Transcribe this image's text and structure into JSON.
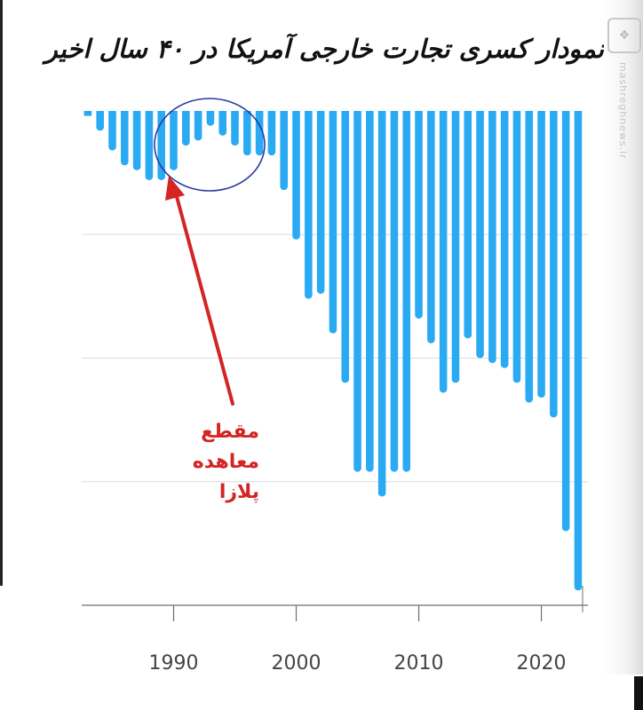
{
  "title": "نمودار کسری تجارت خارجی آمریکا در ۴۰ سال اخیر",
  "annotation": {
    "lines": [
      "مقطع",
      "معاهده",
      "پلازا"
    ]
  },
  "watermark": {
    "icon": "mashregh-logo-icon",
    "text": "mashreghnews.ir"
  },
  "colors": {
    "bar": "#29aaf3",
    "grid": "#d9dde2",
    "axis": "#6f6f6f",
    "annotation": "#d42424",
    "circle": "#2f3aa0"
  },
  "chart_data": {
    "type": "bar",
    "title": "نمودار کسری تجارت خارجی آمریکا در ۴۰ سال اخیر",
    "xlabel": "",
    "ylabel": "",
    "x_ticks": [
      "1990",
      "2000",
      "2010",
      "2020"
    ],
    "x_tick_values": [
      1990,
      2000,
      2010,
      2020
    ],
    "x_range": [
      1982.5,
      2023.8
    ],
    "ylim": [
      -1.0,
      0
    ],
    "grid": true,
    "note": "",
    "categories": [
      1983,
      1984,
      1985,
      1986,
      1987,
      1988,
      1989,
      1990,
      1991,
      1992,
      1993,
      1994,
      1995,
      1996,
      1997,
      1998,
      1999,
      2000,
      2001,
      2002,
      2003,
      2004,
      2005,
      2006,
      2007,
      2008,
      2009,
      2010,
      2011,
      2012,
      2013,
      2014,
      2015,
      2016,
      2017,
      2018,
      2019,
      2020,
      2021,
      2022,
      2023
    ],
    "values": [
      -0.01,
      -0.04,
      -0.08,
      -0.11,
      -0.12,
      -0.14,
      -0.14,
      -0.12,
      -0.07,
      -0.06,
      -0.03,
      -0.05,
      -0.07,
      -0.09,
      -0.09,
      -0.09,
      -0.16,
      -0.26,
      -0.38,
      -0.37,
      -0.45,
      -0.55,
      -0.73,
      -0.73,
      -0.78,
      -0.73,
      -0.73,
      -0.42,
      -0.47,
      -0.57,
      -0.55,
      -0.46,
      -0.5,
      -0.51,
      -0.52,
      -0.55,
      -0.59,
      -0.58,
      -0.62,
      -0.85,
      -0.97
    ],
    "annotations": [
      {
        "text": "مقطع معاهده پلازا",
        "color": "red",
        "shape": "circle-and-arrow"
      }
    ]
  }
}
